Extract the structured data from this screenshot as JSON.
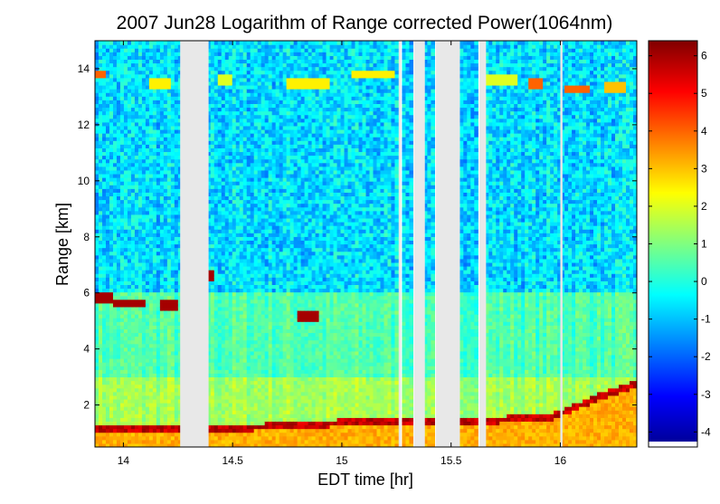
{
  "chart_data": {
    "type": "heatmap",
    "title": "2007 Jun28  Logarithm of Range corrected Power(1064nm)",
    "xlabel": "EDT time [hr]",
    "ylabel": "Range [km]",
    "xlim": [
      13.87,
      16.35
    ],
    "ylim": [
      0.5,
      15
    ],
    "x_ticks": [
      14,
      14.5,
      15,
      15.5,
      16
    ],
    "x_tick_labels": [
      "14",
      "14.5",
      "15",
      "15.5",
      "16"
    ],
    "y_ticks": [
      2,
      4,
      6,
      8,
      10,
      12,
      14
    ],
    "y_tick_labels": [
      "2",
      "4",
      "6",
      "8",
      "10",
      "12",
      "14"
    ],
    "colorbar": {
      "colormap": "jet",
      "clim": [
        -4.4,
        6.4
      ],
      "ticks": [
        -4,
        -3,
        -2,
        -1,
        0,
        1,
        2,
        3,
        4,
        5,
        6
      ],
      "tick_labels": [
        "-4",
        "-3",
        "-2",
        "-1",
        "0",
        "1",
        "2",
        "3",
        "4",
        "5",
        "6"
      ]
    },
    "missing_data_color": "#e8e8e8",
    "data_gaps": [
      {
        "x0": 14.26,
        "x1": 14.39
      },
      {
        "x0": 15.26,
        "x1": 15.27
      },
      {
        "x0": 15.33,
        "x1": 15.38
      },
      {
        "x0": 15.43,
        "x1": 15.54
      },
      {
        "x0": 15.63,
        "x1": 15.66
      },
      {
        "x0": 16.0,
        "x1": 16.01
      }
    ],
    "boundary_layer_top": [
      {
        "x": 13.87,
        "y": 1.2
      },
      {
        "x": 14.1,
        "y": 1.2
      },
      {
        "x": 14.25,
        "y": 1.2
      },
      {
        "x": 14.45,
        "y": 1.2
      },
      {
        "x": 14.8,
        "y": 1.3
      },
      {
        "x": 15.0,
        "y": 1.4
      },
      {
        "x": 15.2,
        "y": 1.5
      },
      {
        "x": 15.5,
        "y": 1.5
      },
      {
        "x": 15.7,
        "y": 1.5
      },
      {
        "x": 15.95,
        "y": 1.6
      },
      {
        "x": 16.05,
        "y": 1.9
      },
      {
        "x": 16.2,
        "y": 2.4
      },
      {
        "x": 16.35,
        "y": 2.8
      }
    ],
    "cloud_layers": [
      {
        "x0": 13.87,
        "x1": 13.96,
        "y": 5.8,
        "value": 6
      },
      {
        "x0": 13.96,
        "x1": 14.1,
        "y": 5.65,
        "value": 6
      },
      {
        "x0": 14.17,
        "x1": 14.25,
        "y": 5.55,
        "value": 6
      },
      {
        "x0": 14.39,
        "x1": 14.41,
        "y": 6.6,
        "value": 6
      },
      {
        "x0": 14.8,
        "x1": 14.9,
        "y": 5.2,
        "value": 6
      },
      {
        "x0": 13.87,
        "x1": 13.92,
        "y": 13.8,
        "value": 4
      },
      {
        "x0": 14.12,
        "x1": 14.22,
        "y": 13.5,
        "value": 2.5
      },
      {
        "x0": 14.44,
        "x1": 14.5,
        "y": 13.6,
        "value": 2
      },
      {
        "x0": 14.75,
        "x1": 14.95,
        "y": 13.5,
        "value": 2.5
      },
      {
        "x0": 15.05,
        "x1": 15.25,
        "y": 13.8,
        "value": 2.5
      },
      {
        "x0": 15.66,
        "x1": 15.8,
        "y": 13.6,
        "value": 2
      },
      {
        "x0": 15.85,
        "x1": 15.92,
        "y": 13.5,
        "value": 4
      },
      {
        "x0": 16.02,
        "x1": 16.14,
        "y": 13.3,
        "value": 4
      },
      {
        "x0": 16.2,
        "x1": 16.3,
        "y": 13.4,
        "value": 3
      }
    ]
  }
}
